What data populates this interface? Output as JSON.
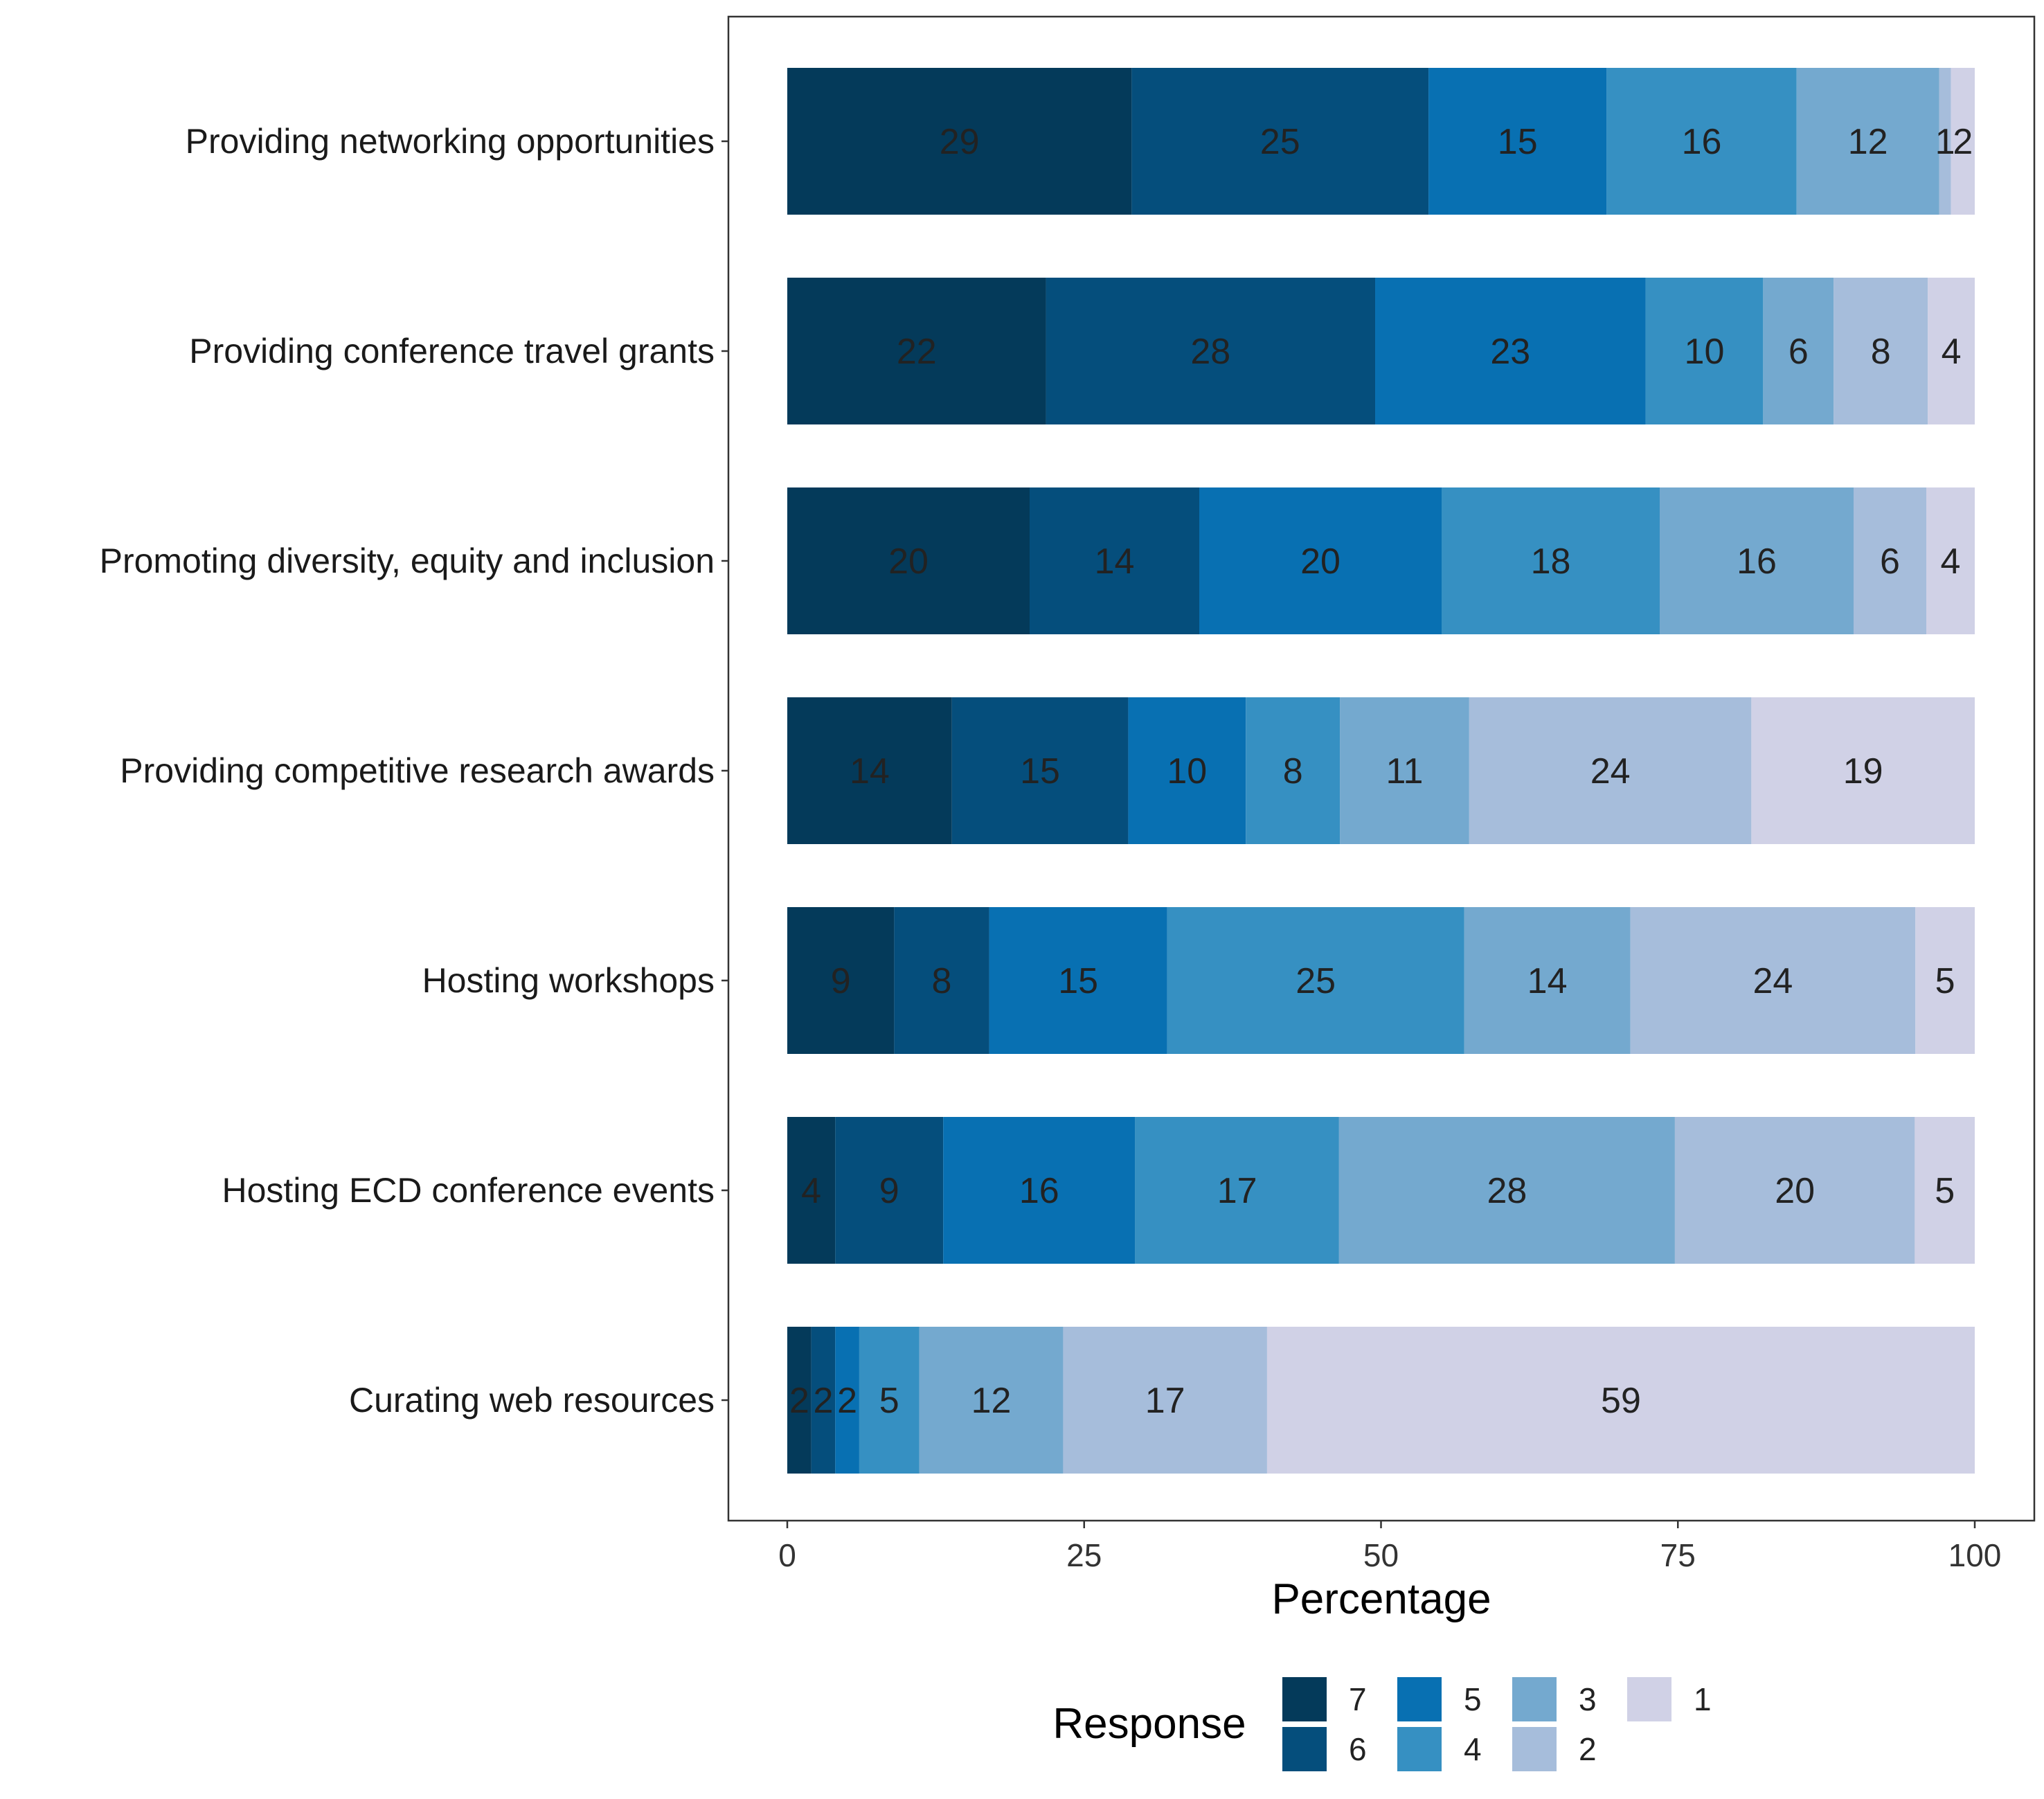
{
  "chart_data": {
    "type": "bar",
    "orientation": "horizontal",
    "stacked": true,
    "xlabel": "Percentage",
    "ylabel": "",
    "xlim": [
      0,
      100
    ],
    "xticks": [
      "0",
      "25",
      "50",
      "75",
      "100"
    ],
    "grid": false,
    "legend_title": "Response",
    "legend_position": "bottom",
    "categories": [
      "Providing networking opportunities",
      "Providing conference travel grants",
      "Promoting diversity, equity and inclusion",
      "Providing competitive research awards",
      "Hosting workshops",
      "Hosting ECD conference events",
      "Curating web resources"
    ],
    "series": [
      {
        "name": "7",
        "color": "#043a5a",
        "values": [
          29,
          22,
          20,
          14,
          9,
          4,
          2
        ]
      },
      {
        "name": "6",
        "color": "#054e7c",
        "values": [
          25,
          28,
          14,
          15,
          8,
          9,
          2
        ]
      },
      {
        "name": "5",
        "color": "#0870b2",
        "values": [
          15,
          23,
          20,
          10,
          15,
          16,
          2
        ]
      },
      {
        "name": "4",
        "color": "#3690c2",
        "values": [
          16,
          10,
          18,
          8,
          25,
          17,
          5
        ]
      },
      {
        "name": "3",
        "color": "#74a9cf",
        "values": [
          12,
          6,
          16,
          11,
          14,
          28,
          12
        ]
      },
      {
        "name": "2",
        "color": "#a6bddb",
        "values": [
          1,
          8,
          6,
          24,
          24,
          20,
          17
        ]
      },
      {
        "name": "1",
        "color": "#d0d1e6",
        "values": [
          2,
          4,
          4,
          19,
          5,
          5,
          59
        ]
      }
    ],
    "value_labels": [
      [
        "29",
        "25",
        "15",
        "16",
        "12",
        "1",
        "2"
      ],
      [
        "22",
        "28",
        "23",
        "10",
        "6",
        "8",
        "4"
      ],
      [
        "20",
        "14",
        "20",
        "18",
        "16",
        "6",
        "4"
      ],
      [
        "14",
        "15",
        "10",
        "8",
        "11",
        "24",
        "19"
      ],
      [
        "9",
        "8",
        "15",
        "25",
        "14",
        "24",
        "5"
      ],
      [
        "4",
        "9",
        "16",
        "17",
        "28",
        "20",
        "5"
      ],
      [
        "2",
        "2",
        "2",
        "5",
        "12",
        "17",
        "59"
      ]
    ]
  }
}
